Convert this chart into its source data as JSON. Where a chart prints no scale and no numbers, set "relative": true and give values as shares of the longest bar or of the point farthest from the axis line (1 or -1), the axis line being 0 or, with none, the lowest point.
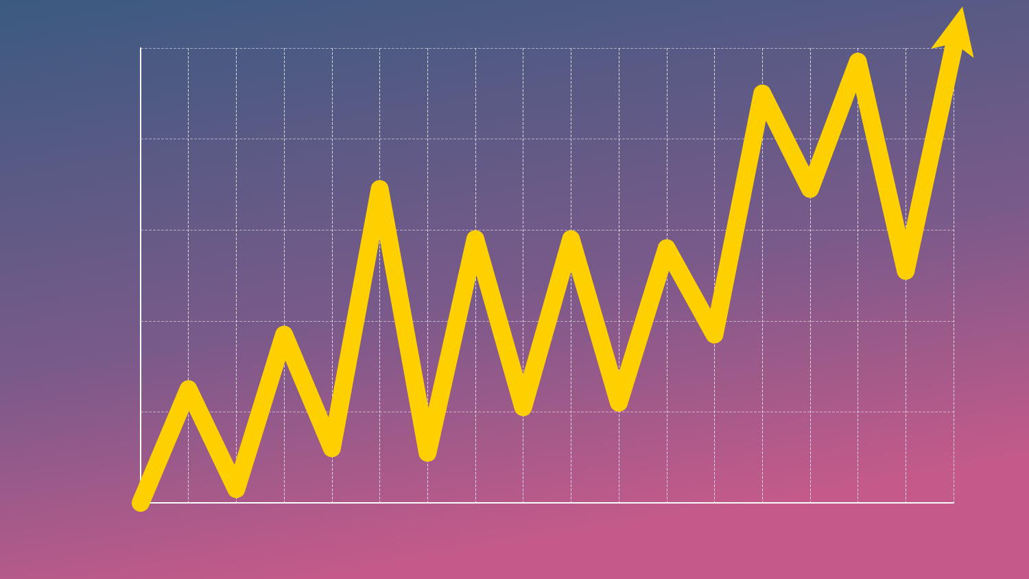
{
  "chart_data": {
    "type": "line",
    "relative": true,
    "categories": [
      null,
      null,
      null,
      null,
      null,
      null,
      null,
      null,
      null,
      null,
      null,
      null,
      null,
      null,
      null,
      null,
      null,
      null
    ],
    "series": [
      {
        "color": "#ffd000",
        "values": [
          0,
          0.25,
          0.03,
          0.37,
          0.12,
          0.69,
          0.11,
          0.58,
          0.21,
          0.58,
          0.22,
          0.56,
          0.37,
          0.9,
          0.69,
          0.97,
          0.51,
          1
        ]
      }
    ],
    "grid": true,
    "line_style": "solid"
  }
}
